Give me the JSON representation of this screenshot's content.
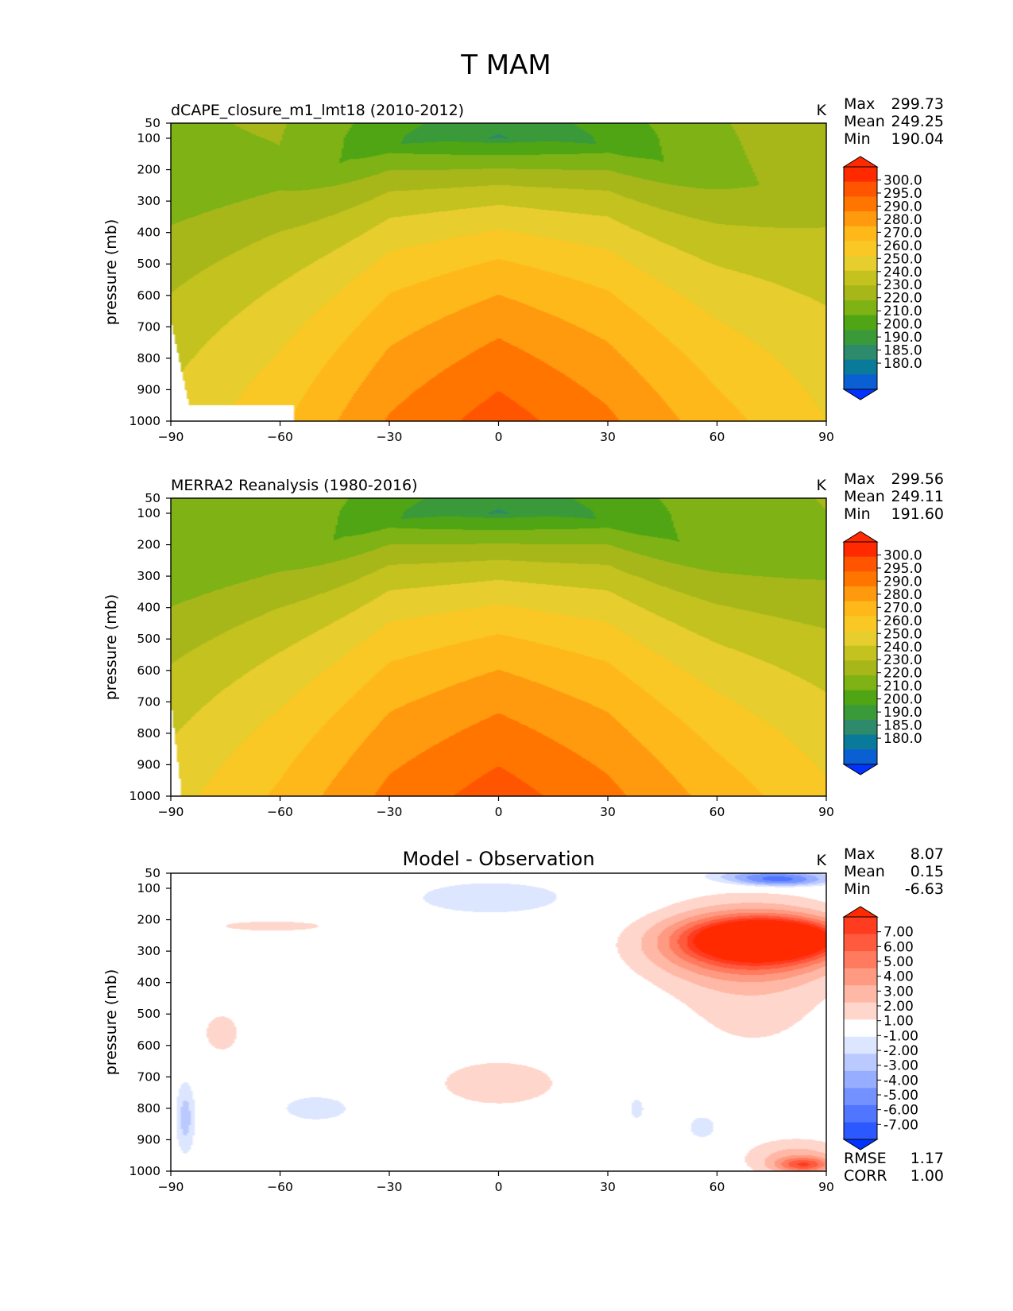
{
  "figure_title": "T MAM",
  "chart_data": [
    {
      "type": "heatmap",
      "title": "dCAPE_closure_m1_lmt18 (2010-2012)",
      "units": "K",
      "xlabel": "",
      "ylabel": "pressure (mb)",
      "xlim": [
        -90,
        90
      ],
      "ylim": [
        1000,
        50
      ],
      "x_ticks": [
        "−90",
        "−60",
        "−30",
        "0",
        "30",
        "60",
        "90"
      ],
      "y_ticks": [
        "50",
        "100",
        "200",
        "300",
        "400",
        "500",
        "600",
        "700",
        "800",
        "900",
        "1000"
      ],
      "stats": [
        {
          "label": "Max",
          "value": "299.73"
        },
        {
          "label": "Mean",
          "value": "249.25"
        },
        {
          "label": "Min",
          "value": "190.04"
        }
      ],
      "colorbar_labels": [
        "300.0",
        "295.0",
        "290.0",
        "280.0",
        "270.0",
        "260.0",
        "250.0",
        "240.0",
        "230.0",
        "220.0",
        "210.0",
        "200.0",
        "190.0",
        "185.0",
        "180.0"
      ],
      "colorbar_colors": [
        "#ff2a00",
        "#ff5500",
        "#ff7500",
        "#ff9a0f",
        "#ffb81a",
        "#f9c824",
        "#e7cd2d",
        "#c3c21f",
        "#a7b71a",
        "#7eb215",
        "#4fa514",
        "#3a9a3a",
        "#2d8a6a",
        "#0a7a9a",
        "#0a5fd2"
      ],
      "over_color": "#ff2a00",
      "under_color": "#0033ff",
      "clevels_low_to_high": [
        190,
        200,
        210,
        220,
        230,
        240,
        250,
        260,
        270,
        280,
        290
      ],
      "fill_colors_low_to_high": [
        "#2d8a6a",
        "#3a9a3a",
        "#4fa514",
        "#7eb215",
        "#a7b71a",
        "#c3c21f",
        "#e7cd2d",
        "#f9c824",
        "#ffb81a",
        "#ff9a0f",
        "#ff7500",
        "#ff5500"
      ],
      "field": {
        "kind": "temperature",
        "surface_temp": {
          "lat": [
            -90,
            -60,
            -30,
            0,
            30,
            60,
            90
          ],
          "t": [
            243,
            258,
            281,
            295,
            282,
            264,
            250
          ]
        },
        "tropopause_temp": {
          "lat": [
            -90,
            -60,
            -30,
            0,
            30,
            60,
            90
          ],
          "t": [
            216,
            219,
            205,
            196,
            205,
            217,
            225
          ]
        },
        "tropopause_p": {
          "lat": [
            -90,
            -60,
            -30,
            0,
            30,
            60,
            90
          ],
          "p": [
            300,
            250,
            120,
            100,
            120,
            230,
            280
          ]
        },
        "missing_below": {
          "lat": [
            -90,
            -85,
            -80,
            -70,
            -56
          ],
          "p": [
            680,
            950,
            950,
            950,
            950
          ]
        }
      }
    },
    {
      "type": "heatmap",
      "title": "MERRA2 Reanalysis (1980-2016)",
      "units": "K",
      "xlabel": "",
      "ylabel": "pressure (mb)",
      "xlim": [
        -90,
        90
      ],
      "ylim": [
        1000,
        50
      ],
      "x_ticks": [
        "−90",
        "−60",
        "−30",
        "0",
        "30",
        "60",
        "90"
      ],
      "y_ticks": [
        "50",
        "100",
        "200",
        "300",
        "400",
        "500",
        "600",
        "700",
        "800",
        "900",
        "1000"
      ],
      "stats": [
        {
          "label": "Max",
          "value": "299.56"
        },
        {
          "label": "Mean",
          "value": "249.11"
        },
        {
          "label": "Min",
          "value": "191.60"
        }
      ],
      "colorbar_labels": [
        "300.0",
        "295.0",
        "290.0",
        "280.0",
        "270.0",
        "260.0",
        "250.0",
        "240.0",
        "230.0",
        "220.0",
        "210.0",
        "200.0",
        "190.0",
        "185.0",
        "180.0"
      ],
      "colorbar_colors": [
        "#ff2a00",
        "#ff5500",
        "#ff7500",
        "#ff9a0f",
        "#ffb81a",
        "#f9c824",
        "#e7cd2d",
        "#c3c21f",
        "#a7b71a",
        "#7eb215",
        "#4fa514",
        "#3a9a3a",
        "#2d8a6a",
        "#0a7a9a",
        "#0a5fd2"
      ],
      "over_color": "#ff2a00",
      "under_color": "#0033ff",
      "clevels_low_to_high": [
        190,
        200,
        210,
        220,
        230,
        240,
        250,
        260,
        270,
        280,
        290
      ],
      "fill_colors_low_to_high": [
        "#2d8a6a",
        "#3a9a3a",
        "#4fa514",
        "#7eb215",
        "#a7b71a",
        "#c3c21f",
        "#e7cd2d",
        "#f9c824",
        "#ffb81a",
        "#ff9a0f",
        "#ff7500",
        "#ff5500"
      ],
      "field": {
        "kind": "temperature",
        "surface_temp": {
          "lat": [
            -90,
            -60,
            -30,
            0,
            30,
            60,
            90
          ],
          "t": [
            246,
            262,
            283,
            295,
            283,
            266,
            252
          ]
        },
        "tropopause_temp": {
          "lat": [
            -90,
            -60,
            -30,
            0,
            30,
            60,
            90
          ],
          "t": [
            214,
            217,
            205,
            196,
            205,
            214,
            218
          ]
        },
        "tropopause_p": {
          "lat": [
            -90,
            -60,
            -30,
            0,
            30,
            60,
            90
          ],
          "p": [
            300,
            250,
            120,
            100,
            120,
            230,
            280
          ]
        },
        "missing_below": {
          "lat": [
            -90,
            -87,
            -85
          ],
          "p": [
            700,
            1000,
            1000
          ]
        }
      }
    },
    {
      "type": "heatmap",
      "title": "Model - Observation",
      "units": "K",
      "xlabel": "",
      "ylabel": "pressure (mb)",
      "xlim": [
        -90,
        90
      ],
      "ylim": [
        1000,
        50
      ],
      "x_ticks": [
        "−90",
        "−60",
        "−30",
        "0",
        "30",
        "60",
        "90"
      ],
      "y_ticks": [
        "50",
        "100",
        "200",
        "300",
        "400",
        "500",
        "600",
        "700",
        "800",
        "900",
        "1000"
      ],
      "stats": [
        {
          "label": "Max",
          "value": "8.07"
        },
        {
          "label": "Mean",
          "value": "0.15"
        },
        {
          "label": "Min",
          "value": "-6.63"
        }
      ],
      "extra_stats": [
        {
          "label": "RMSE",
          "value": "1.17"
        },
        {
          "label": "CORR",
          "value": "1.00"
        }
      ],
      "colorbar_labels": [
        "7.00",
        "6.00",
        "5.00",
        "4.00",
        "3.00",
        "2.00",
        "1.00",
        "-1.00",
        "-2.00",
        "-3.00",
        "-4.00",
        "-5.00",
        "-6.00",
        "-7.00"
      ],
      "colorbar_colors": [
        "#ff3b20",
        "#ff5a3e",
        "#ff7a5e",
        "#ff9a82",
        "#ffb8a6",
        "#ffd6cc",
        "#ffffff",
        "#dde6ff",
        "#bac9ff",
        "#97adff",
        "#7391ff",
        "#5075ff",
        "#2c59ff"
      ],
      "over_color": "#ff2a00",
      "under_color": "#0033ff",
      "anomalies": [
        {
          "lat": 75,
          "p": 260,
          "rlat": 18,
          "rp": 55,
          "value": 7.5
        },
        {
          "lat": 72,
          "p": 270,
          "rlat": 24,
          "rp": 90,
          "value": 5
        },
        {
          "lat": 66,
          "p": 280,
          "rlat": 30,
          "rp": 130,
          "value": 3
        },
        {
          "lat": 70,
          "p": 400,
          "rlat": 28,
          "rp": 300,
          "value": 1.5
        },
        {
          "lat": 82,
          "p": 960,
          "rlat": 16,
          "rp": 70,
          "value": 2.5
        },
        {
          "lat": 84,
          "p": 980,
          "rlat": 8,
          "rp": 25,
          "value": 4
        },
        {
          "lat": 0,
          "p": 720,
          "rlat": 25,
          "rp": 110,
          "value": 1.5
        },
        {
          "lat": -76,
          "p": 560,
          "rlat": 7,
          "rp": 90,
          "value": 1.5
        },
        {
          "lat": -62,
          "p": 220,
          "rlat": 22,
          "rp": 25,
          "value": 1.5
        },
        {
          "lat": -50,
          "p": 800,
          "rlat": 14,
          "rp": 60,
          "value": -1.5
        },
        {
          "lat": -2,
          "p": 130,
          "rlat": 32,
          "rp": 80,
          "value": -1.5
        },
        {
          "lat": 75,
          "p": 60,
          "rlat": 18,
          "rp": 25,
          "value": -4.5
        },
        {
          "lat": 78,
          "p": 80,
          "rlat": 14,
          "rp": 20,
          "value": -3
        },
        {
          "lat": 56,
          "p": 860,
          "rlat": 6,
          "rp": 60,
          "value": -1.5
        },
        {
          "lat": 38,
          "p": 800,
          "rlat": 3,
          "rp": 55,
          "value": -1.5
        },
        {
          "lat": -86,
          "p": 830,
          "rlat": 3,
          "rp": 130,
          "value": -2.5
        }
      ]
    }
  ]
}
